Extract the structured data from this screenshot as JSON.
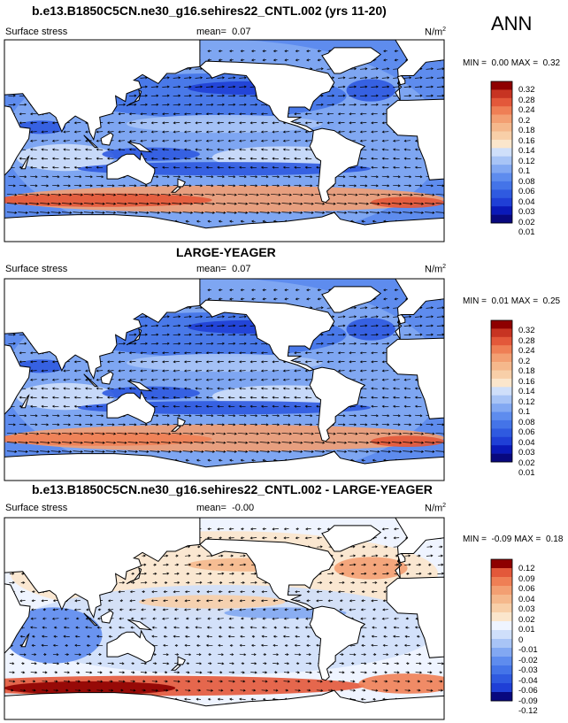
{
  "season": "ANN",
  "colors": {
    "abs_scale": [
      "#08087e",
      "#0a19b8",
      "#1f3fd6",
      "#2f5ae0",
      "#4474e8",
      "#5e8cee",
      "#82a8f2",
      "#a8c4f6",
      "#cfdffa",
      "#fbe6cc",
      "#f8cfa8",
      "#f5b88c",
      "#f39f72",
      "#ef7f55",
      "#e3583a",
      "#c73422",
      "#8e0000"
    ],
    "diff_scale": [
      "#08087e",
      "#1f3fd6",
      "#2f5ae0",
      "#4474e8",
      "#5e8cee",
      "#82a8f2",
      "#a8c4f6",
      "#cfdffa",
      "#eff4ff",
      "#fbe6cc",
      "#f8cfa8",
      "#f5b88c",
      "#f39f72",
      "#ef7f55",
      "#e3583a",
      "#8e0000"
    ],
    "land": "#ffffff",
    "coast": "#000000"
  },
  "panels": [
    {
      "title": "b.e13.B1850C5CN.ne30_g16.sehires22_CNTL.002 (yrs 11-20)",
      "variable": "Surface stress",
      "mean_label": "mean=",
      "mean_value": "0.07",
      "units": "N/m",
      "units_sup": "2",
      "min_label": "MIN =",
      "min_value": "0.00",
      "max_label": "MAX =",
      "max_value": "0.32",
      "colorbar_ticks": [
        "0.32",
        "0.28",
        "0.24",
        "0.2",
        "0.18",
        "0.16",
        "0.14",
        "0.12",
        "0.1",
        "0.08",
        "0.06",
        "0.04",
        "0.03",
        "0.02",
        "0.01"
      ],
      "field_type": "abs",
      "field_level": 0.55
    },
    {
      "title": "LARGE-YEAGER",
      "variable": "Surface stress",
      "mean_label": "mean=",
      "mean_value": "0.07",
      "units": "N/m",
      "units_sup": "2",
      "min_label": "MIN =",
      "min_value": "0.01",
      "max_label": "MAX =",
      "max_value": "0.25",
      "colorbar_ticks": [
        "0.32",
        "0.28",
        "0.24",
        "0.2",
        "0.18",
        "0.16",
        "0.14",
        "0.12",
        "0.1",
        "0.08",
        "0.06",
        "0.04",
        "0.03",
        "0.02",
        "0.01"
      ],
      "field_type": "abs",
      "field_level": 0.5
    },
    {
      "title": "b.e13.B1850C5CN.ne30_g16.sehires22_CNTL.002 - LARGE-YEAGER",
      "variable": "Surface stress",
      "mean_label": "mean=",
      "mean_value": "-0.00",
      "units": "N/m",
      "units_sup": "2",
      "min_label": "MIN =",
      "min_value": "-0.09",
      "max_label": "MAX =",
      "max_value": "0.18",
      "colorbar_ticks": [
        "0.12",
        "0.09",
        "0.06",
        "0.04",
        "0.03",
        "0.02",
        "0.01",
        "0",
        "-0.01",
        "-0.02",
        "-0.03",
        "-0.04",
        "-0.06",
        "-0.09",
        "-0.12"
      ],
      "field_type": "diff",
      "field_level": 0.5
    }
  ]
}
